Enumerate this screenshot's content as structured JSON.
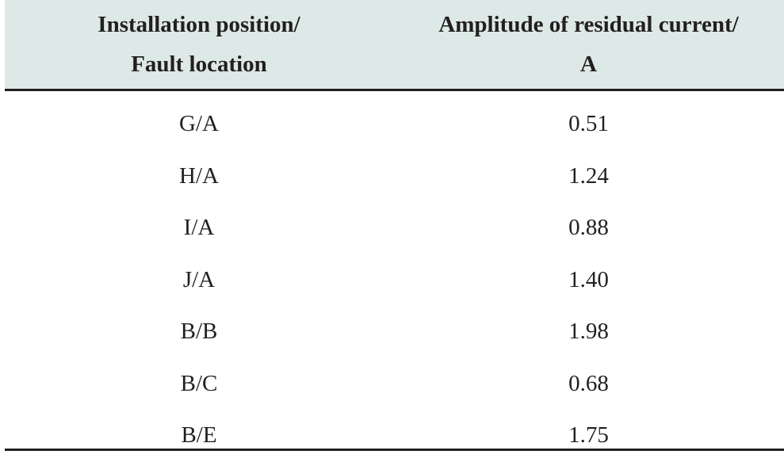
{
  "table": {
    "headers": [
      {
        "line1": "Installation position/",
        "line2": "Fault location"
      },
      {
        "line1": "Amplitude of residual current/",
        "line2": "A"
      }
    ],
    "rows": [
      {
        "position": "G/A",
        "amplitude": "0.51"
      },
      {
        "position": "H/A",
        "amplitude": "1.24"
      },
      {
        "position": "I/A",
        "amplitude": "0.88"
      },
      {
        "position": "J/A",
        "amplitude": "1.40"
      },
      {
        "position": "B/B",
        "amplitude": "1.98"
      },
      {
        "position": "B/C",
        "amplitude": "0.68"
      },
      {
        "position": "B/E",
        "amplitude": "1.75"
      }
    ]
  },
  "colors": {
    "header_background": "#dde9e7",
    "rule": "#231f20",
    "text": "#231f20"
  }
}
